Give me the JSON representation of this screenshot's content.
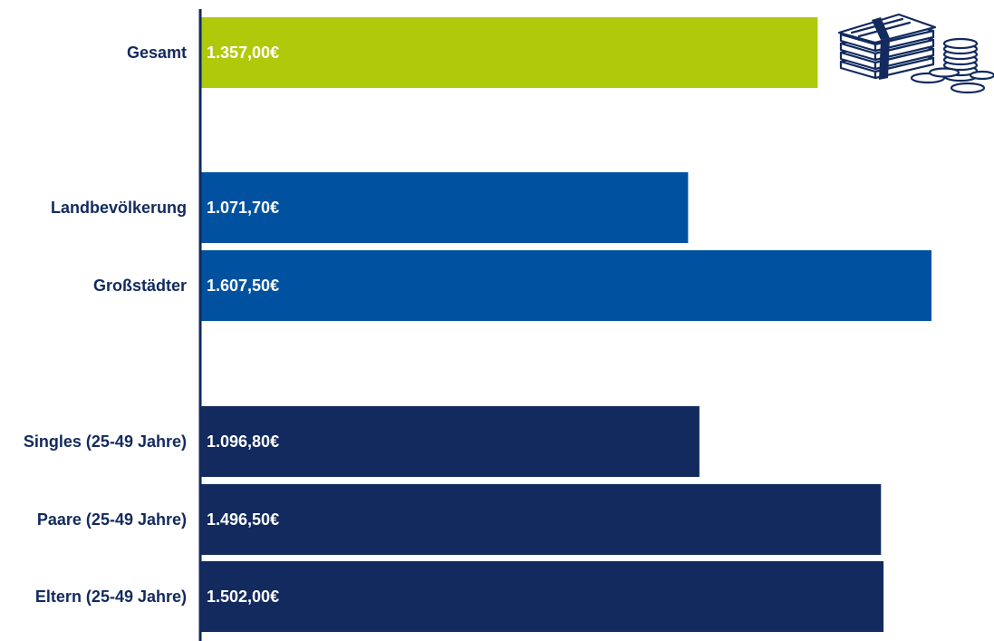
{
  "chart_data": {
    "type": "bar",
    "orientation": "horizontal",
    "categories": [
      "Gesamt",
      "Landbevölkerung",
      "Großstädter",
      "Singles (25-49 Jahre)",
      "Paare (25-49 Jahre)",
      "Eltern (25-49 Jahre)"
    ],
    "values": [
      1357.0,
      1071.7,
      1607.5,
      1096.8,
      1496.5,
      1502.0
    ],
    "value_labels": [
      "1.357,00€",
      "1.071,70€",
      "1.607,50€",
      "1.096,80€",
      "1.496,50€",
      "1.502,00€"
    ],
    "groups": [
      {
        "categories": [
          "Gesamt"
        ],
        "color": "#afca0b"
      },
      {
        "categories": [
          "Landbevölkerung",
          "Großstädter"
        ],
        "color": "#0052a0"
      },
      {
        "categories": [
          "Singles (25-49 Jahre)",
          "Paare (25-49 Jahre)",
          "Eltern (25-49 Jahre)"
        ],
        "color": "#122a5e"
      }
    ],
    "xlim": [
      0,
      1607.5
    ],
    "grid": false,
    "legend": "none",
    "decoration": "money-stack-and-coins-icon"
  },
  "colors": {
    "axis": "#122a5e",
    "label_text": "#122a5e",
    "value_text": "#ffffff",
    "icon_stroke": "#122a5e"
  }
}
